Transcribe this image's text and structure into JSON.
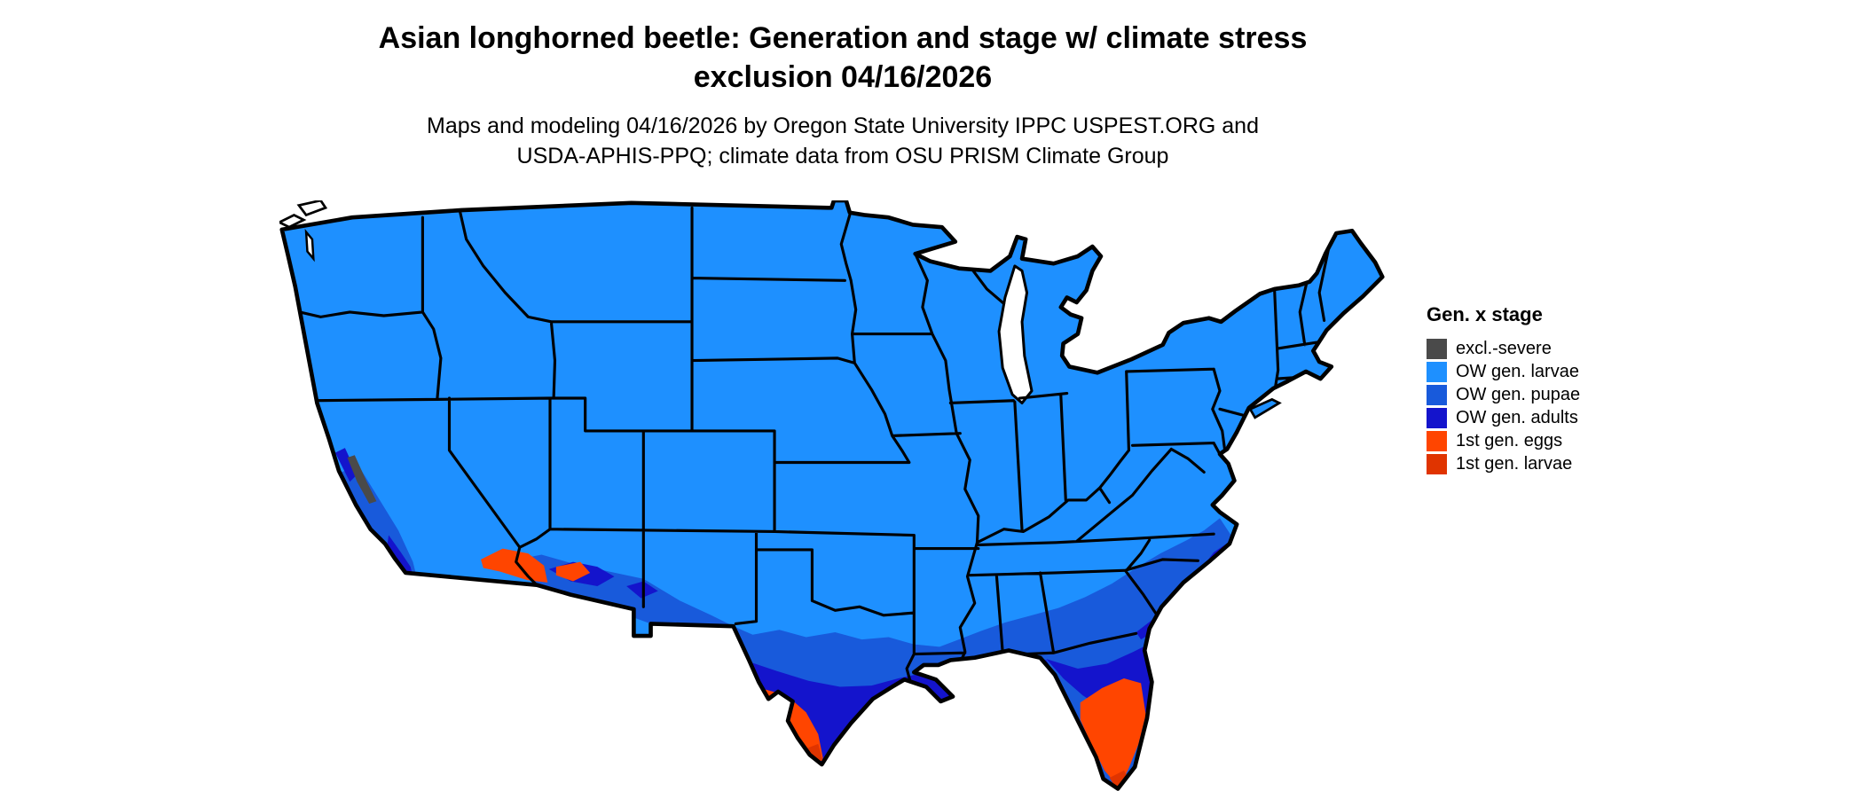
{
  "figure": {
    "title_line1": "Asian longhorned beetle: Generation and stage w/ climate stress",
    "title_line2": "exclusion 04/16/2026",
    "subtitle_line1": "Maps and modeling 04/16/2026 by Oregon State University IPPC USPEST.ORG and",
    "subtitle_line2": "USDA-APHIS-PPQ; climate data from OSU PRISM Climate Group"
  },
  "legend": {
    "title": "Gen. x stage",
    "items": [
      {
        "label": "excl.-severe",
        "color": "#4a4a4a"
      },
      {
        "label": "OW gen. larvae",
        "color": "#1e90ff"
      },
      {
        "label": "OW gen. pupae",
        "color": "#185adb"
      },
      {
        "label": "OW gen. adults",
        "color": "#1414cc"
      },
      {
        "label": "1st gen. eggs",
        "color": "#ff4500"
      },
      {
        "label": "1st gen. larvae",
        "color": "#e03400"
      }
    ]
  },
  "map": {
    "colors": {
      "excl_severe": "#4a4a4a",
      "ow_larvae": "#1e90ff",
      "ow_pupae": "#185adb",
      "ow_adults": "#1414cc",
      "gen1_eggs": "#ff4500",
      "gen1_larvae": "#e03400",
      "water": "#ffffff",
      "border": "#000000"
    }
  }
}
